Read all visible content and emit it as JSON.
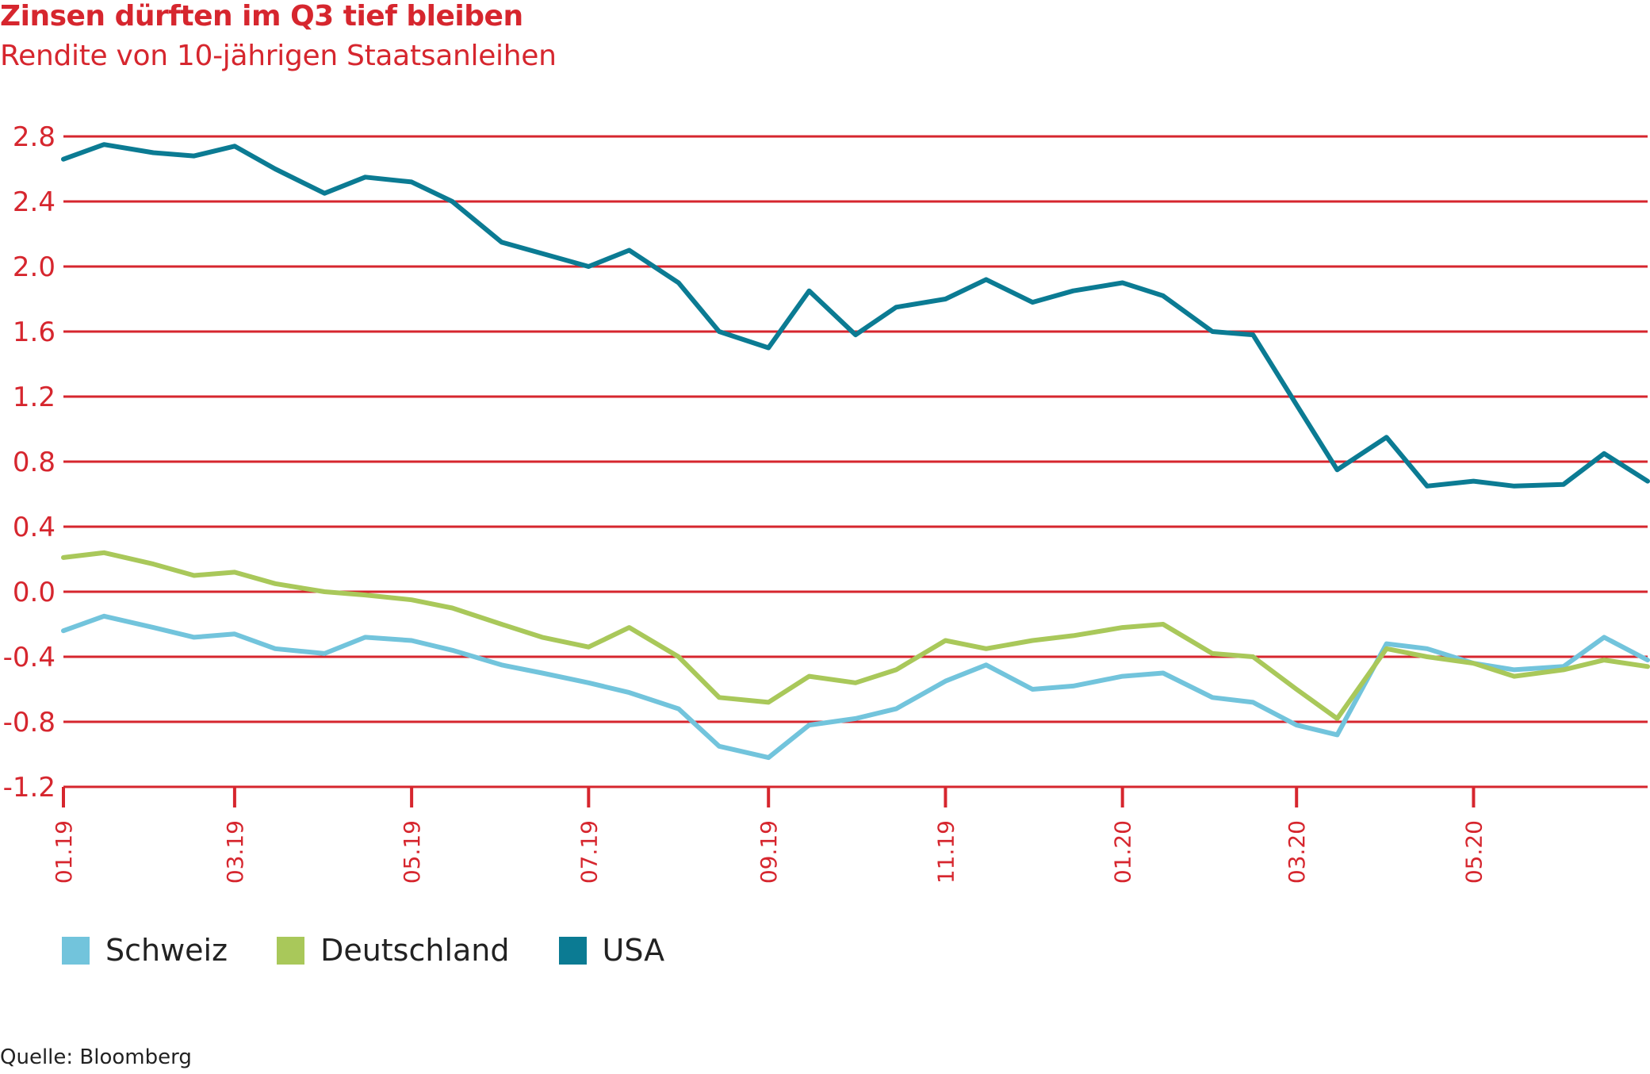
{
  "chart_data": {
    "type": "line",
    "title": "Zinsen dürften im Q3 tief bleiben",
    "subtitle": "Rendite von 10-jährigen Staatsanleihen",
    "xlabel": "",
    "ylabel": "",
    "source": "Quelle: Bloomberg",
    "ylim": [
      -1.2,
      2.8
    ],
    "yticks": [
      "2.8",
      "2.4",
      "2.0",
      "1.6",
      "1.2",
      "0.8",
      "0.4",
      "0.0",
      "-0.4",
      "-0.8",
      "-1.2"
    ],
    "xticks": [
      "01.19",
      "03.19",
      "05.19",
      "07.19",
      "09.19",
      "11.19",
      "01.20",
      "03.20",
      "05.20"
    ],
    "grid": true,
    "legend_position": "bottom-left",
    "x": [
      "2019-01-01",
      "2019-01-15",
      "2019-02-01",
      "2019-02-15",
      "2019-03-01",
      "2019-03-15",
      "2019-04-01",
      "2019-04-15",
      "2019-05-01",
      "2019-05-15",
      "2019-06-01",
      "2019-06-15",
      "2019-07-01",
      "2019-07-15",
      "2019-08-01",
      "2019-08-15",
      "2019-09-01",
      "2019-09-15",
      "2019-10-01",
      "2019-10-15",
      "2019-11-01",
      "2019-11-15",
      "2019-12-01",
      "2019-12-15",
      "2020-01-01",
      "2020-01-15",
      "2020-02-01",
      "2020-02-15",
      "2020-03-01",
      "2020-03-15",
      "2020-04-01",
      "2020-04-15",
      "2020-05-01",
      "2020-05-15",
      "2020-06-01",
      "2020-06-15",
      "2020-06-30"
    ],
    "series": [
      {
        "name": "Schweiz",
        "color": "#72c4dc",
        "values": [
          -0.24,
          -0.15,
          -0.22,
          -0.28,
          -0.26,
          -0.35,
          -0.38,
          -0.28,
          -0.3,
          -0.36,
          -0.45,
          -0.5,
          -0.56,
          -0.62,
          -0.72,
          -0.95,
          -1.02,
          -0.82,
          -0.78,
          -0.72,
          -0.55,
          -0.45,
          -0.6,
          -0.58,
          -0.52,
          -0.5,
          -0.65,
          -0.68,
          -0.82,
          -0.88,
          -0.32,
          -0.35,
          -0.44,
          -0.48,
          -0.46,
          -0.28,
          -0.42
        ]
      },
      {
        "name": "Deutschland",
        "color": "#a9c85a",
        "values": [
          0.21,
          0.24,
          0.17,
          0.1,
          0.12,
          0.05,
          0.0,
          -0.02,
          -0.05,
          -0.1,
          -0.2,
          -0.28,
          -0.34,
          -0.22,
          -0.4,
          -0.65,
          -0.68,
          -0.52,
          -0.56,
          -0.48,
          -0.3,
          -0.35,
          -0.3,
          -0.27,
          -0.22,
          -0.2,
          -0.38,
          -0.4,
          -0.6,
          -0.78,
          -0.35,
          -0.4,
          -0.44,
          -0.52,
          -0.48,
          -0.42,
          -0.46
        ]
      },
      {
        "name": "USA",
        "color": "#0b7b93",
        "values": [
          2.66,
          2.75,
          2.7,
          2.68,
          2.74,
          2.6,
          2.45,
          2.55,
          2.52,
          2.4,
          2.15,
          2.08,
          2.0,
          2.1,
          1.9,
          1.6,
          1.5,
          1.85,
          1.58,
          1.75,
          1.8,
          1.92,
          1.78,
          1.85,
          1.9,
          1.82,
          1.6,
          1.58,
          1.15,
          0.75,
          0.95,
          0.65,
          0.68,
          0.65,
          0.66,
          0.85,
          0.68
        ]
      }
    ]
  }
}
